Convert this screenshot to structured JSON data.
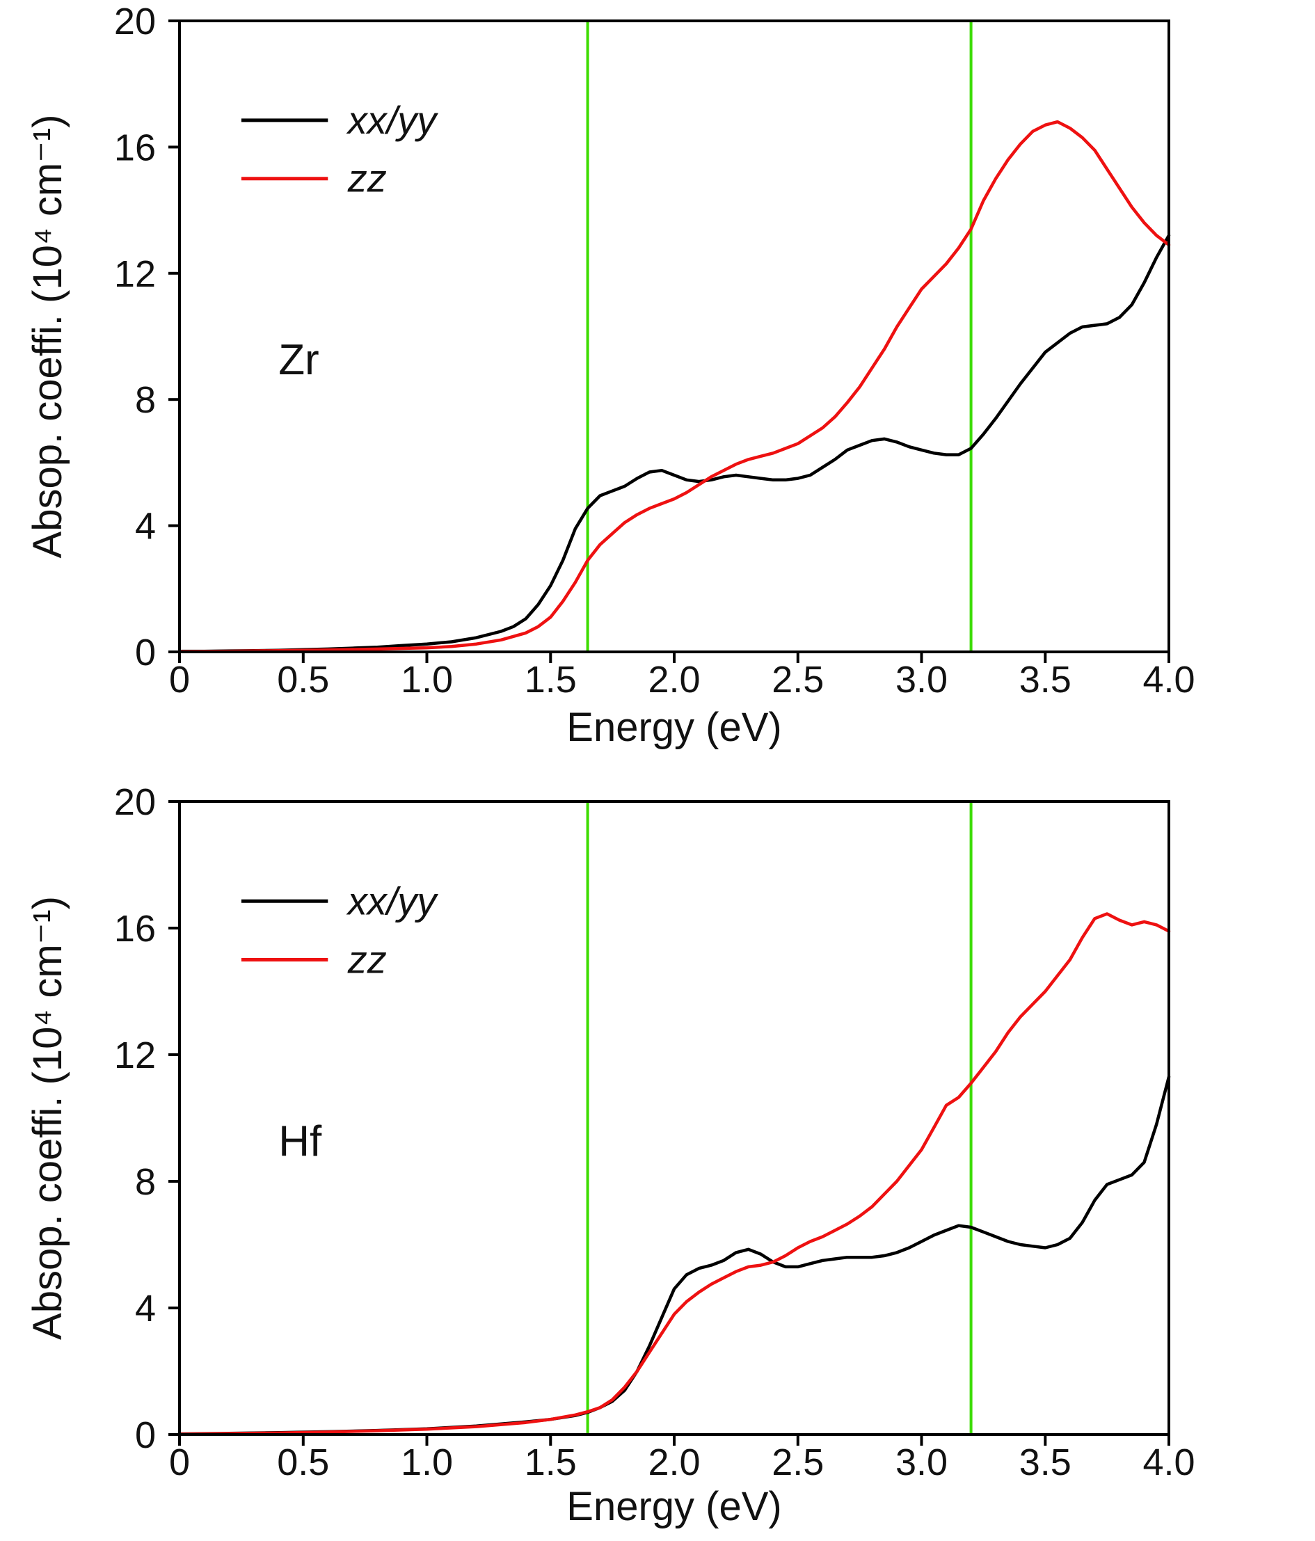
{
  "figure": {
    "background": "#ffffff",
    "frame_color": "#000000"
  },
  "chart_data": [
    {
      "type": "line",
      "panel_label": "Zr",
      "xlabel": "Energy (eV)",
      "ylabel": "Absop. coeffi. (10⁴ cm⁻¹)",
      "xlim": [
        0,
        4.0
      ],
      "ylim": [
        0,
        20
      ],
      "xticks": [
        "0",
        "0.5",
        "1.0",
        "1.5",
        "2.0",
        "2.5",
        "3.0",
        "3.5",
        "4.0"
      ],
      "xtick_values": [
        0,
        0.5,
        1.0,
        1.5,
        2.0,
        2.5,
        3.0,
        3.5,
        4.0
      ],
      "yticks": [
        "0",
        "4",
        "8",
        "12",
        "16",
        "20"
      ],
      "ytick_values": [
        0,
        4,
        8,
        12,
        16,
        20
      ],
      "grid": false,
      "legend": {
        "position": "upper-left",
        "entries": [
          {
            "label": "xx/yy",
            "color": "#000000"
          },
          {
            "label": "zz",
            "color": "#ee1111"
          }
        ]
      },
      "vlines": {
        "color": "#3ddc00",
        "x": [
          1.65,
          3.2
        ]
      },
      "series": [
        {
          "name": "xx/yy",
          "color": "#000000",
          "x": [
            0,
            0.1,
            0.2,
            0.3,
            0.4,
            0.5,
            0.6,
            0.7,
            0.8,
            0.9,
            1.0,
            1.1,
            1.2,
            1.3,
            1.35,
            1.4,
            1.45,
            1.5,
            1.55,
            1.6,
            1.65,
            1.7,
            1.75,
            1.8,
            1.85,
            1.9,
            1.95,
            2.0,
            2.05,
            2.1,
            2.15,
            2.2,
            2.25,
            2.3,
            2.35,
            2.4,
            2.45,
            2.5,
            2.55,
            2.6,
            2.65,
            2.7,
            2.75,
            2.8,
            2.85,
            2.9,
            2.95,
            3.0,
            3.05,
            3.1,
            3.15,
            3.2,
            3.25,
            3.3,
            3.4,
            3.5,
            3.6,
            3.65,
            3.7,
            3.75,
            3.8,
            3.85,
            3.9,
            3.95,
            4.0
          ],
          "y": [
            0.02,
            0.02,
            0.03,
            0.04,
            0.05,
            0.07,
            0.09,
            0.12,
            0.15,
            0.2,
            0.25,
            0.32,
            0.45,
            0.65,
            0.8,
            1.05,
            1.5,
            2.1,
            2.9,
            3.9,
            4.55,
            4.95,
            5.1,
            5.25,
            5.5,
            5.7,
            5.75,
            5.6,
            5.45,
            5.4,
            5.45,
            5.55,
            5.6,
            5.55,
            5.5,
            5.45,
            5.45,
            5.5,
            5.6,
            5.85,
            6.1,
            6.4,
            6.55,
            6.7,
            6.75,
            6.65,
            6.5,
            6.4,
            6.3,
            6.25,
            6.25,
            6.45,
            6.9,
            7.4,
            8.5,
            9.5,
            10.1,
            10.3,
            10.35,
            10.4,
            10.6,
            11.0,
            11.7,
            12.5,
            13.2
          ]
        },
        {
          "name": "zz",
          "color": "#ee1111",
          "x": [
            0,
            0.2,
            0.4,
            0.6,
            0.8,
            1.0,
            1.1,
            1.2,
            1.3,
            1.4,
            1.45,
            1.5,
            1.55,
            1.6,
            1.65,
            1.7,
            1.75,
            1.8,
            1.85,
            1.9,
            1.95,
            2.0,
            2.05,
            2.1,
            2.15,
            2.2,
            2.25,
            2.3,
            2.35,
            2.4,
            2.45,
            2.5,
            2.55,
            2.6,
            2.65,
            2.7,
            2.75,
            2.8,
            2.85,
            2.9,
            2.95,
            3.0,
            3.05,
            3.1,
            3.15,
            3.2,
            3.25,
            3.3,
            3.35,
            3.4,
            3.45,
            3.5,
            3.55,
            3.6,
            3.65,
            3.7,
            3.75,
            3.8,
            3.85,
            3.9,
            3.95,
            4.0
          ],
          "y": [
            0.01,
            0.02,
            0.04,
            0.06,
            0.09,
            0.13,
            0.17,
            0.25,
            0.38,
            0.6,
            0.8,
            1.1,
            1.6,
            2.2,
            2.9,
            3.4,
            3.75,
            4.1,
            4.35,
            4.55,
            4.7,
            4.85,
            5.05,
            5.3,
            5.55,
            5.75,
            5.95,
            6.1,
            6.2,
            6.3,
            6.45,
            6.6,
            6.85,
            7.1,
            7.45,
            7.9,
            8.4,
            9.0,
            9.6,
            10.3,
            10.9,
            11.5,
            11.9,
            12.3,
            12.8,
            13.4,
            14.3,
            15.0,
            15.6,
            16.1,
            16.5,
            16.7,
            16.8,
            16.6,
            16.3,
            15.9,
            15.3,
            14.7,
            14.1,
            13.6,
            13.2,
            12.9
          ]
        }
      ]
    },
    {
      "type": "line",
      "panel_label": "Hf",
      "xlabel": "Energy (eV)",
      "ylabel": "Absop. coeffi. (10⁴ cm⁻¹)",
      "xlim": [
        0,
        4.0
      ],
      "ylim": [
        0,
        20
      ],
      "xticks": [
        "0",
        "0.5",
        "1.0",
        "1.5",
        "2.0",
        "2.5",
        "3.0",
        "3.5",
        "4.0"
      ],
      "xtick_values": [
        0,
        0.5,
        1.0,
        1.5,
        2.0,
        2.5,
        3.0,
        3.5,
        4.0
      ],
      "yticks": [
        "0",
        "4",
        "8",
        "12",
        "16",
        "20"
      ],
      "ytick_values": [
        0,
        4,
        8,
        12,
        16,
        20
      ],
      "grid": false,
      "legend": {
        "position": "upper-left",
        "entries": [
          {
            "label": "xx/yy",
            "color": "#000000"
          },
          {
            "label": "zz",
            "color": "#ee1111"
          }
        ]
      },
      "vlines": {
        "color": "#3ddc00",
        "x": [
          1.65,
          3.2
        ]
      },
      "series": [
        {
          "name": "xx/yy",
          "color": "#000000",
          "x": [
            0,
            0.2,
            0.4,
            0.6,
            0.8,
            1.0,
            1.2,
            1.4,
            1.5,
            1.6,
            1.65,
            1.7,
            1.75,
            1.8,
            1.85,
            1.9,
            1.95,
            2.0,
            2.05,
            2.1,
            2.15,
            2.2,
            2.25,
            2.3,
            2.35,
            2.4,
            2.45,
            2.5,
            2.55,
            2.6,
            2.65,
            2.7,
            2.75,
            2.8,
            2.85,
            2.9,
            2.95,
            3.0,
            3.05,
            3.1,
            3.15,
            3.2,
            3.25,
            3.3,
            3.35,
            3.4,
            3.45,
            3.5,
            3.55,
            3.6,
            3.65,
            3.7,
            3.75,
            3.8,
            3.85,
            3.9,
            3.95,
            4.0
          ],
          "y": [
            0.02,
            0.04,
            0.06,
            0.09,
            0.13,
            0.18,
            0.27,
            0.4,
            0.48,
            0.6,
            0.7,
            0.85,
            1.05,
            1.4,
            2.0,
            2.8,
            3.7,
            4.6,
            5.05,
            5.25,
            5.35,
            5.5,
            5.75,
            5.85,
            5.7,
            5.45,
            5.3,
            5.3,
            5.4,
            5.5,
            5.55,
            5.6,
            5.6,
            5.6,
            5.65,
            5.75,
            5.9,
            6.1,
            6.3,
            6.45,
            6.6,
            6.55,
            6.4,
            6.25,
            6.1,
            6.0,
            5.95,
            5.9,
            6.0,
            6.2,
            6.7,
            7.4,
            7.9,
            8.05,
            8.2,
            8.6,
            9.8,
            11.3
          ]
        },
        {
          "name": "zz",
          "color": "#ee1111",
          "x": [
            0,
            0.2,
            0.4,
            0.6,
            0.8,
            1.0,
            1.2,
            1.4,
            1.5,
            1.6,
            1.65,
            1.7,
            1.75,
            1.8,
            1.85,
            1.9,
            1.95,
            2.0,
            2.05,
            2.1,
            2.15,
            2.2,
            2.25,
            2.3,
            2.35,
            2.4,
            2.45,
            2.5,
            2.55,
            2.6,
            2.65,
            2.7,
            2.75,
            2.8,
            2.85,
            2.9,
            2.95,
            3.0,
            3.05,
            3.1,
            3.15,
            3.2,
            3.25,
            3.3,
            3.35,
            3.4,
            3.45,
            3.5,
            3.55,
            3.6,
            3.65,
            3.7,
            3.75,
            3.8,
            3.85,
            3.9,
            3.95,
            4.0
          ],
          "y": [
            0.01,
            0.03,
            0.05,
            0.08,
            0.12,
            0.17,
            0.25,
            0.38,
            0.48,
            0.62,
            0.72,
            0.85,
            1.1,
            1.5,
            2.0,
            2.6,
            3.2,
            3.8,
            4.2,
            4.5,
            4.75,
            4.95,
            5.15,
            5.3,
            5.35,
            5.45,
            5.65,
            5.9,
            6.1,
            6.25,
            6.45,
            6.65,
            6.9,
            7.2,
            7.6,
            8.0,
            8.5,
            9.0,
            9.7,
            10.4,
            10.65,
            11.1,
            11.6,
            12.1,
            12.7,
            13.2,
            13.6,
            14.0,
            14.5,
            15.0,
            15.7,
            16.3,
            16.45,
            16.25,
            16.1,
            16.2,
            16.1,
            15.9
          ]
        }
      ]
    }
  ]
}
